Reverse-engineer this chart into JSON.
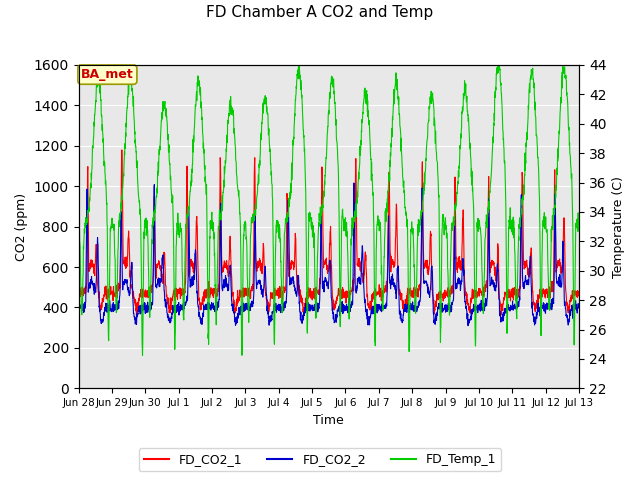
{
  "title": "FD Chamber A CO2 and Temp",
  "xlabel": "Time",
  "ylabel_left": "CO2 (ppm)",
  "ylabel_right": "Temperature (C)",
  "ylim_left": [
    0,
    1600
  ],
  "ylim_right": [
    22,
    44
  ],
  "yticks_left": [
    0,
    200,
    400,
    600,
    800,
    1000,
    1200,
    1400,
    1600
  ],
  "yticks_right": [
    22,
    24,
    26,
    28,
    30,
    32,
    34,
    36,
    38,
    40,
    42,
    44
  ],
  "bg_color": "#e8e8e8",
  "fig_bg_color": "#ffffff",
  "grid_color": "#ffffff",
  "annotation_text": "BA_met",
  "annotation_bg": "#ffffcc",
  "annotation_border": "#999900",
  "annotation_text_color": "#cc0000",
  "legend_entries": [
    "FD_CO2_1",
    "FD_CO2_2",
    "FD_Temp_1"
  ],
  "legend_colors": [
    "#ff0000",
    "#0000cc",
    "#00cc00"
  ],
  "line_co2_1_color": "#ff0000",
  "line_co2_2_color": "#0000cc",
  "line_temp_1_color": "#00cc00",
  "n_days": 15,
  "n_points_per_day": 144,
  "tick_labels": [
    "Jun 28",
    "Jun 29",
    "Jun 30",
    "Jul 1",
    "Jul 2",
    "Jul 3",
    "Jul 4",
    "Jul 5",
    "Jul 6",
    "Jul 7",
    "Jul 8",
    "Jul 9",
    "Jul 10",
    "Jul 11",
    "Jul 12",
    "Jul 13"
  ]
}
